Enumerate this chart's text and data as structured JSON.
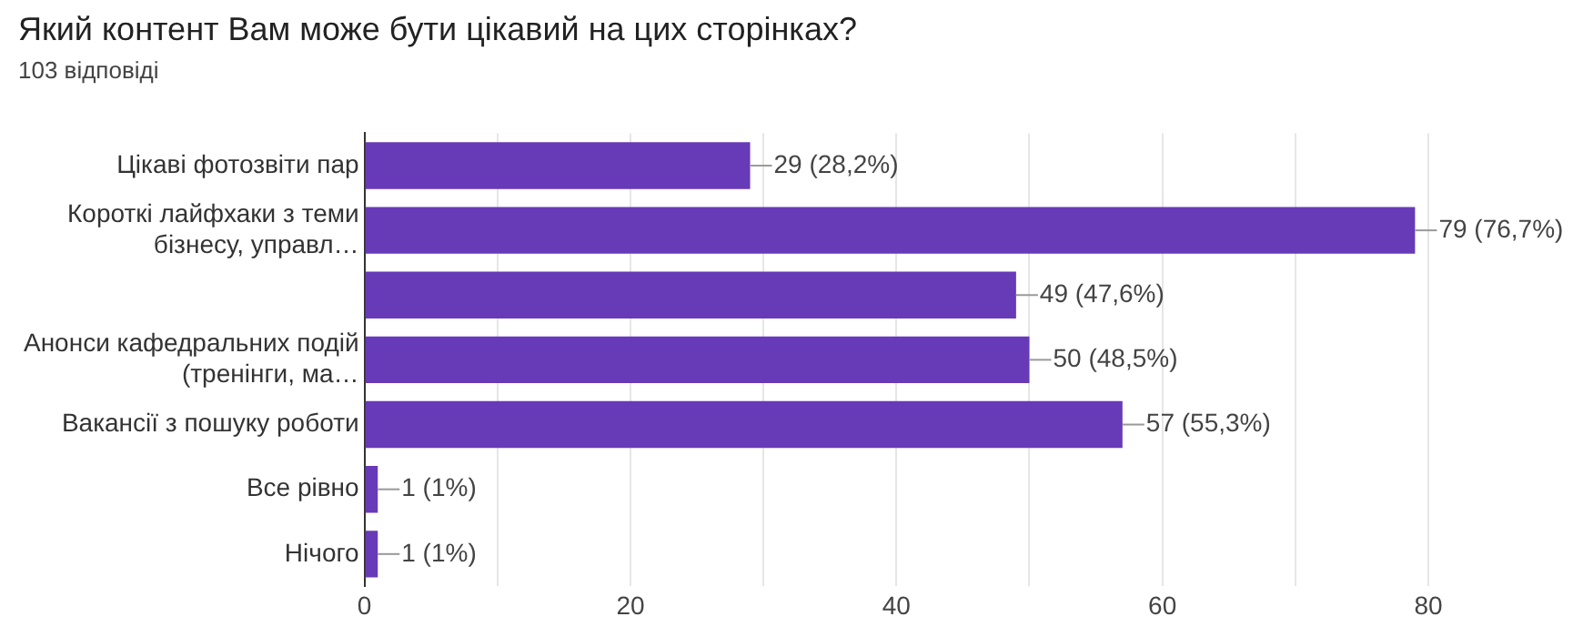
{
  "chart_data": {
    "type": "bar",
    "orientation": "horizontal",
    "title": "Який контент Вам може бути цікавий на цих сторінках?",
    "subtitle": "103 відповіді",
    "categories": [
      "Цікаві фотозвіти пар",
      "Короткі лайфхаки з теми бізнесу, управл…",
      null,
      "Анонси кафедральних подій (тренінги, ма…",
      "Вакансії з пошуку роботи",
      "Все рівно",
      "Нічого"
    ],
    "values": [
      29,
      79,
      49,
      50,
      57,
      1,
      1
    ],
    "value_labels": [
      "29 (28,2%)",
      "79 (76,7%)",
      "49 (47,6%)",
      "50 (48,5%)",
      "57 (55,3%)",
      "1 (1%)",
      "1 (1%)"
    ],
    "color": "#673ab7",
    "xlim": [
      0,
      80
    ],
    "xticks": [
      0,
      {
        "value": 10,
        "label": null
      },
      20,
      {
        "value": 30,
        "label": null
      },
      40,
      {
        "value": 50,
        "label": null
      },
      60,
      {
        "value": 70,
        "label": null
      },
      80
    ],
    "grid": "x"
  }
}
